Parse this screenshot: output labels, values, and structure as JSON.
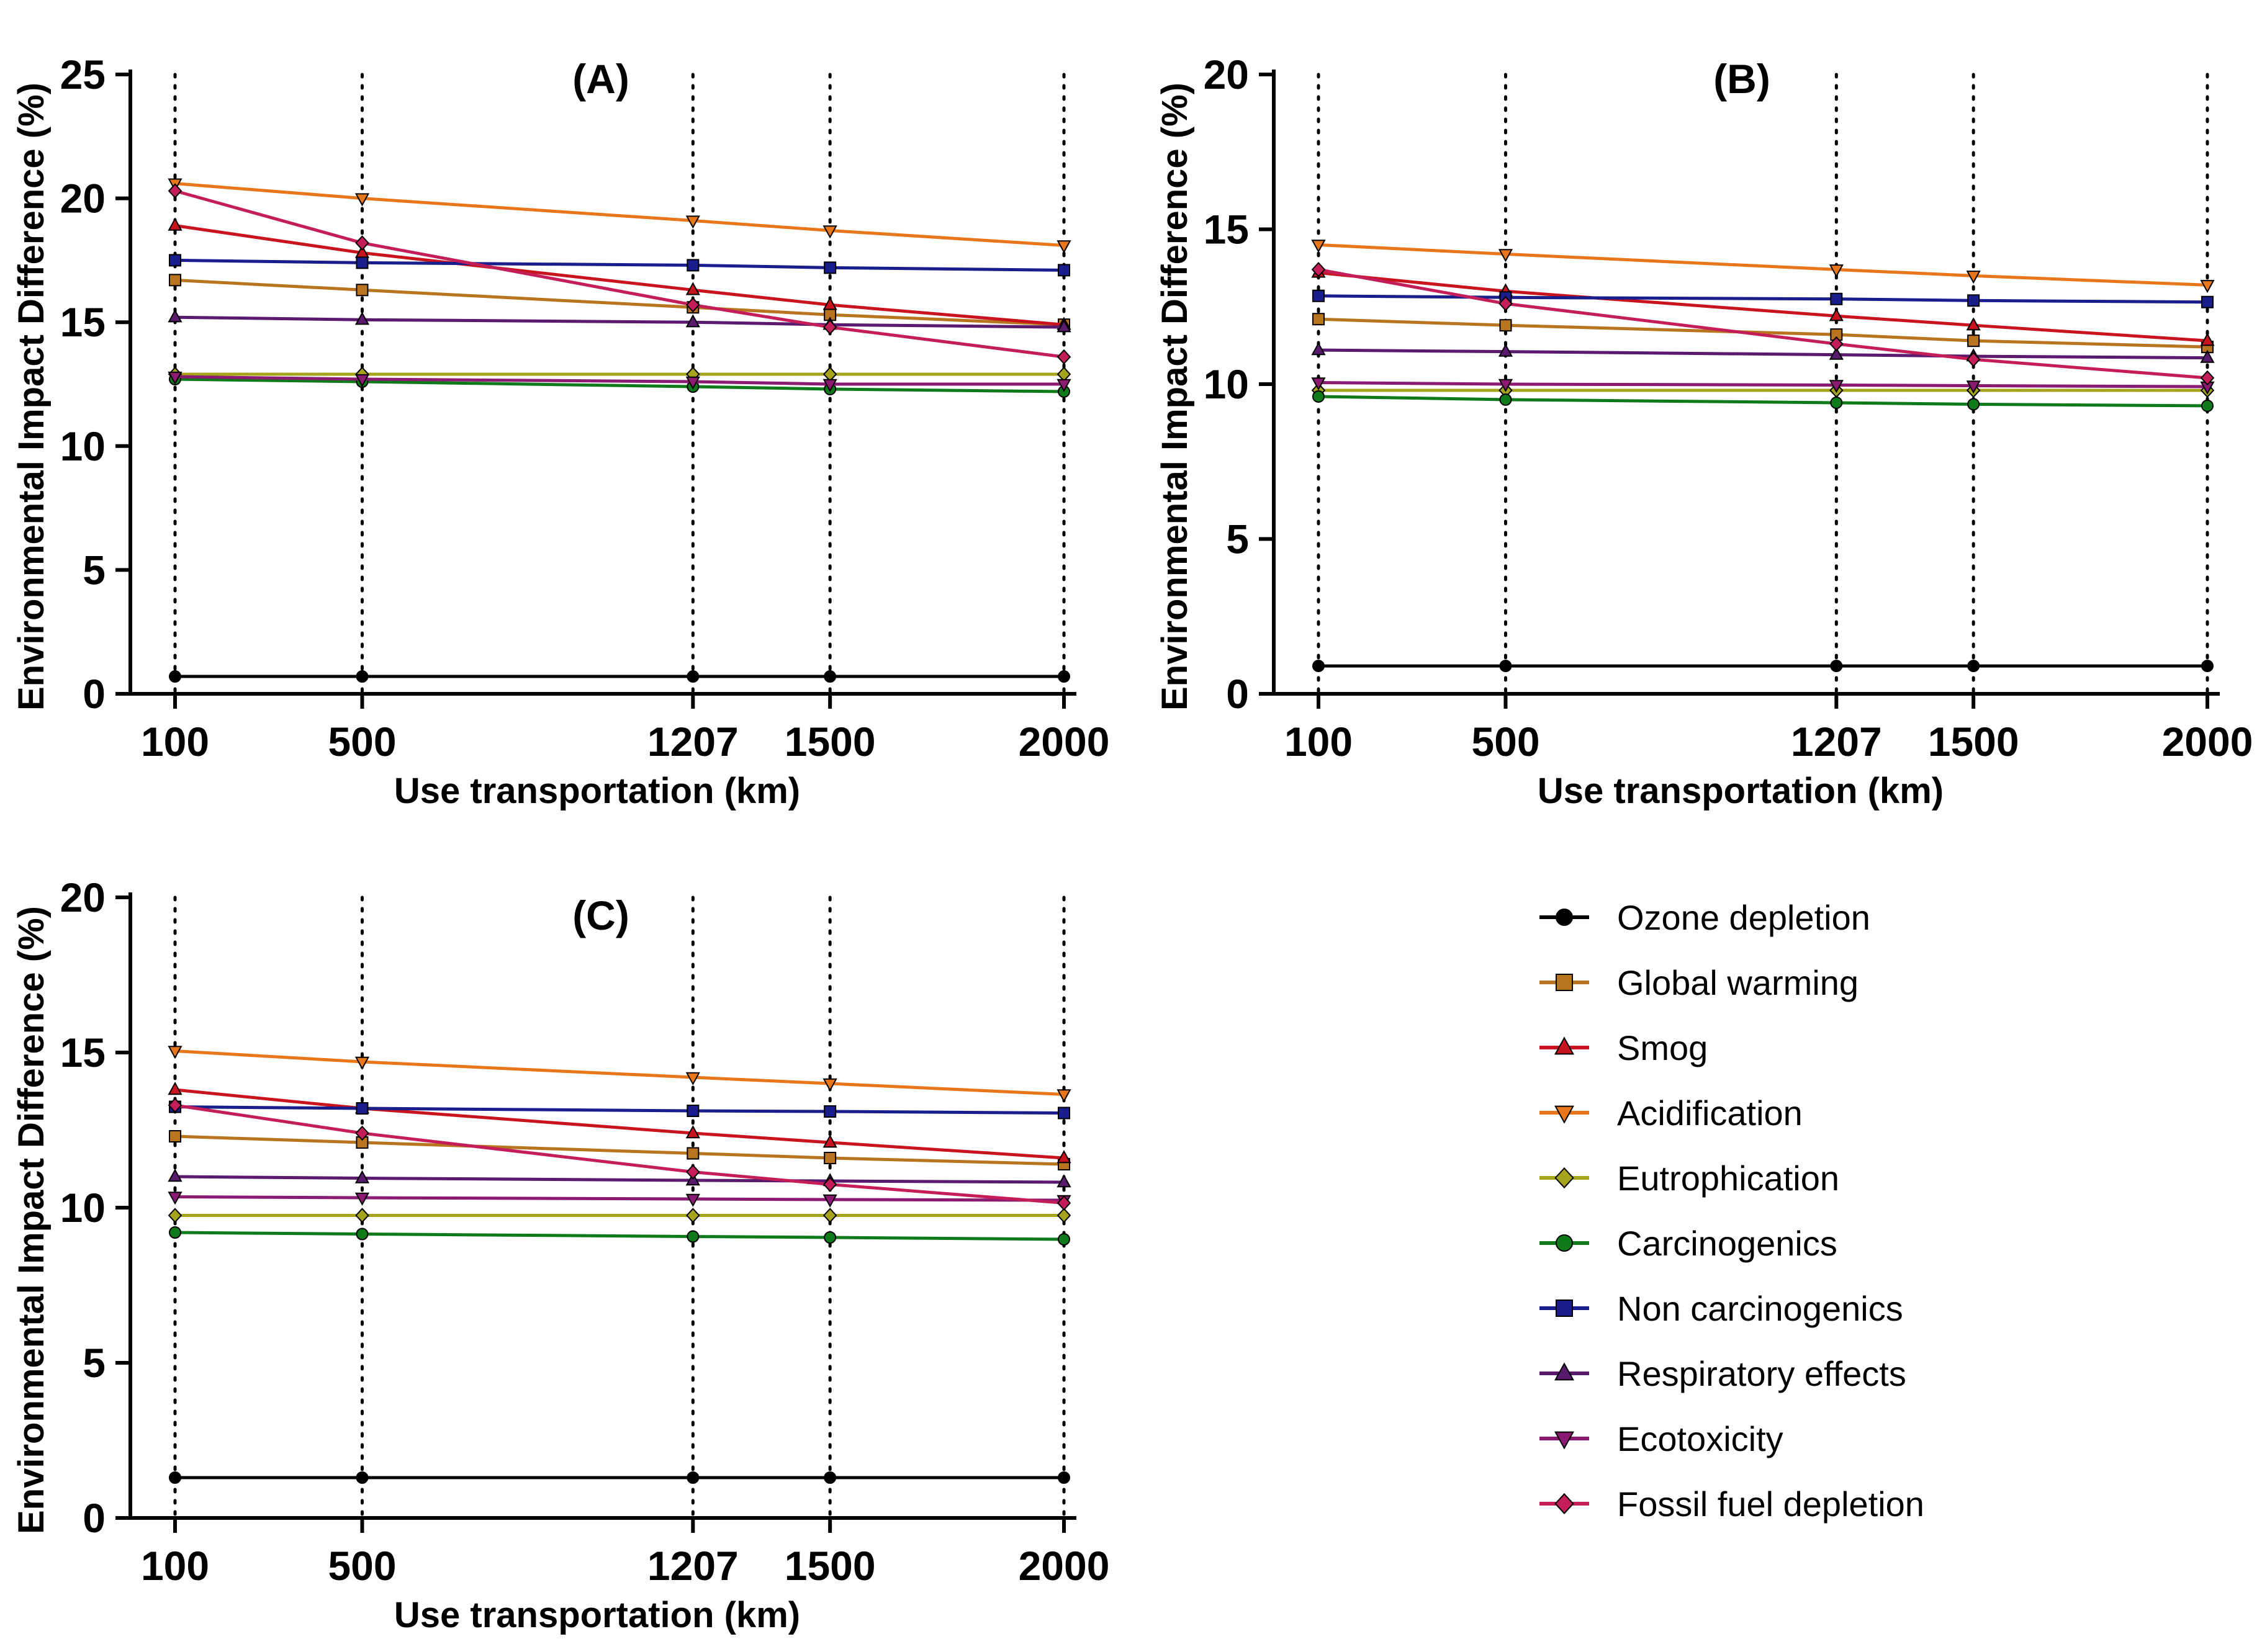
{
  "chart_data": [
    {
      "type": "line",
      "title": "(A)",
      "xlabel": "Use transportation (km)",
      "ylabel": "Environmental Impact Difference (%)",
      "x": [
        100,
        500,
        1207,
        1500,
        2000
      ],
      "xticks": [
        "100",
        "500",
        "1207",
        "1500",
        "2000"
      ],
      "ylim": [
        0,
        25
      ],
      "yticks": [
        0,
        5,
        10,
        15,
        20,
        25
      ],
      "vertical_gridlines": "dotted at each x value",
      "series": [
        {
          "name": "Ozone depletion",
          "values": [
            0.7,
            0.7,
            0.7,
            0.7,
            0.7
          ]
        },
        {
          "name": "Global warming",
          "values": [
            16.7,
            16.3,
            15.6,
            15.3,
            14.9
          ]
        },
        {
          "name": "Smog",
          "values": [
            18.9,
            17.8,
            16.3,
            15.7,
            14.9
          ]
        },
        {
          "name": "Acidification",
          "values": [
            20.6,
            20.0,
            19.1,
            18.7,
            18.1
          ]
        },
        {
          "name": "Eutrophication",
          "values": [
            12.9,
            12.9,
            12.9,
            12.9,
            12.9
          ]
        },
        {
          "name": "Carcinogenics",
          "values": [
            12.7,
            12.6,
            12.4,
            12.3,
            12.2
          ]
        },
        {
          "name": "Non carcinogenics",
          "values": [
            17.5,
            17.4,
            17.3,
            17.2,
            17.1
          ]
        },
        {
          "name": "Respiratory effects",
          "values": [
            15.2,
            15.1,
            15.0,
            14.9,
            14.8
          ]
        },
        {
          "name": "Ecotoxicity",
          "values": [
            12.8,
            12.7,
            12.6,
            12.5,
            12.5
          ]
        },
        {
          "name": "Fossil fuel depletion",
          "values": [
            20.3,
            18.2,
            15.7,
            14.8,
            13.6
          ]
        }
      ]
    },
    {
      "type": "line",
      "title": "(B)",
      "xlabel": "Use transportation (km)",
      "ylabel": "Environmental Impact Difference (%)",
      "x": [
        100,
        500,
        1207,
        1500,
        2000
      ],
      "xticks": [
        "100",
        "500",
        "1207",
        "1500",
        "2000"
      ],
      "ylim": [
        0,
        20
      ],
      "yticks": [
        0,
        5,
        10,
        15,
        20
      ],
      "vertical_gridlines": "dotted at each x value",
      "series": [
        {
          "name": "Ozone depletion",
          "values": [
            0.9,
            0.9,
            0.9,
            0.9,
            0.9
          ]
        },
        {
          "name": "Global warming",
          "values": [
            12.1,
            11.9,
            11.6,
            11.4,
            11.2
          ]
        },
        {
          "name": "Smog",
          "values": [
            13.6,
            13.0,
            12.2,
            11.9,
            11.4
          ]
        },
        {
          "name": "Acidification",
          "values": [
            14.5,
            14.2,
            13.7,
            13.5,
            13.2
          ]
        },
        {
          "name": "Eutrophication",
          "values": [
            9.8,
            9.8,
            9.8,
            9.8,
            9.8
          ]
        },
        {
          "name": "Carcinogenics",
          "values": [
            9.6,
            9.5,
            9.4,
            9.35,
            9.3
          ]
        },
        {
          "name": "Non carcinogenics",
          "values": [
            12.85,
            12.8,
            12.75,
            12.7,
            12.65
          ]
        },
        {
          "name": "Respiratory effects",
          "values": [
            11.1,
            11.05,
            10.95,
            10.9,
            10.85
          ]
        },
        {
          "name": "Ecotoxicity",
          "values": [
            10.05,
            10.0,
            9.97,
            9.95,
            9.92
          ]
        },
        {
          "name": "Fossil fuel depletion",
          "values": [
            13.7,
            12.6,
            11.3,
            10.8,
            10.2
          ]
        }
      ]
    },
    {
      "type": "line",
      "title": "(C)",
      "xlabel": "Use transportation (km)",
      "ylabel": "Environmental Impact Difference (%)",
      "x": [
        100,
        500,
        1207,
        1500,
        2000
      ],
      "xticks": [
        "100",
        "500",
        "1207",
        "1500",
        "2000"
      ],
      "ylim": [
        0,
        20
      ],
      "yticks": [
        0,
        5,
        10,
        15,
        20
      ],
      "vertical_gridlines": "dotted at each x value",
      "series": [
        {
          "name": "Ozone depletion",
          "values": [
            1.3,
            1.3,
            1.3,
            1.3,
            1.3
          ]
        },
        {
          "name": "Global warming",
          "values": [
            12.3,
            12.1,
            11.75,
            11.6,
            11.4
          ]
        },
        {
          "name": "Smog",
          "values": [
            13.8,
            13.2,
            12.4,
            12.1,
            11.6
          ]
        },
        {
          "name": "Acidification",
          "values": [
            15.05,
            14.7,
            14.2,
            14.0,
            13.65
          ]
        },
        {
          "name": "Eutrophication",
          "values": [
            9.75,
            9.75,
            9.75,
            9.75,
            9.75
          ]
        },
        {
          "name": "Carcinogenics",
          "values": [
            9.2,
            9.15,
            9.07,
            9.04,
            8.98
          ]
        },
        {
          "name": "Non carcinogenics",
          "values": [
            13.25,
            13.2,
            13.12,
            13.1,
            13.05
          ]
        },
        {
          "name": "Respiratory effects",
          "values": [
            11.0,
            10.95,
            10.88,
            10.86,
            10.82
          ]
        },
        {
          "name": "Ecotoxicity",
          "values": [
            10.35,
            10.32,
            10.28,
            10.26,
            10.24
          ]
        },
        {
          "name": "Fossil fuel depletion",
          "values": [
            13.3,
            12.4,
            11.15,
            10.75,
            10.15
          ]
        }
      ]
    }
  ],
  "legend": {
    "position": "bottom-right",
    "items": [
      {
        "name": "Ozone depletion",
        "color": "#000000",
        "marker": "circle"
      },
      {
        "name": "Global warming",
        "color": "#B8741E",
        "marker": "square"
      },
      {
        "name": "Smog",
        "color": "#C8141E",
        "marker": "triangle-up"
      },
      {
        "name": "Acidification",
        "color": "#E8761A",
        "marker": "triangle-down"
      },
      {
        "name": "Eutrophication",
        "color": "#A6A31C",
        "marker": "diamond"
      },
      {
        "name": "Carcinogenics",
        "color": "#0E7A1A",
        "marker": "circle"
      },
      {
        "name": "Non carcinogenics",
        "color": "#1A1E8C",
        "marker": "square"
      },
      {
        "name": "Respiratory effects",
        "color": "#5A1A6E",
        "marker": "triangle-up"
      },
      {
        "name": "Ecotoxicity",
        "color": "#8A1A72",
        "marker": "triangle-down"
      },
      {
        "name": "Fossil fuel depletion",
        "color": "#C41E5A",
        "marker": "diamond"
      }
    ]
  }
}
